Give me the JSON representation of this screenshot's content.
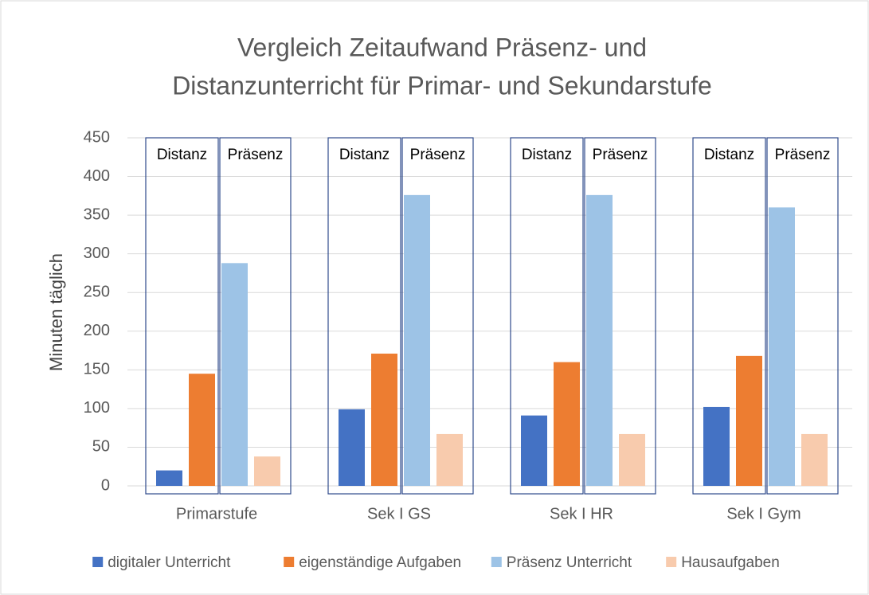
{
  "chart_data": {
    "type": "bar",
    "title": [
      "Vergleich Zeitaufwand Präsenz- und",
      "Distanzunterricht für Primar- und Sekundarstufe"
    ],
    "y_label": "Minuten täglich",
    "categories": [
      "Primarstufe",
      "Sek I GS",
      "Sek I HR",
      "Sek I Gym"
    ],
    "series": [
      {
        "name": "digitaler Unterricht",
        "color": "#4472c4",
        "values": [
          20,
          99,
          91,
          102
        ]
      },
      {
        "name": "eigenständige Aufgaben",
        "color": "#ed7d31",
        "values": [
          145,
          171,
          160,
          168
        ]
      },
      {
        "name": "Präsenz Unterricht",
        "color": "#9dc3e6",
        "values": [
          288,
          376,
          376,
          360
        ]
      },
      {
        "name": "Hausaufgaben",
        "color": "#f8cbad",
        "values": [
          38,
          67,
          67,
          67
        ]
      }
    ],
    "annotations": [
      [
        "Distanz",
        "Präsenz"
      ],
      [
        "Distanz",
        "Präsenz"
      ],
      [
        "Distanz",
        "Präsenz"
      ],
      [
        "Distanz",
        "Präsenz"
      ]
    ],
    "ylim": [
      0,
      450
    ],
    "yticks": [
      0,
      50,
      100,
      150,
      200,
      250,
      300,
      350,
      400,
      450
    ],
    "grid": true,
    "legend": "bottom"
  }
}
